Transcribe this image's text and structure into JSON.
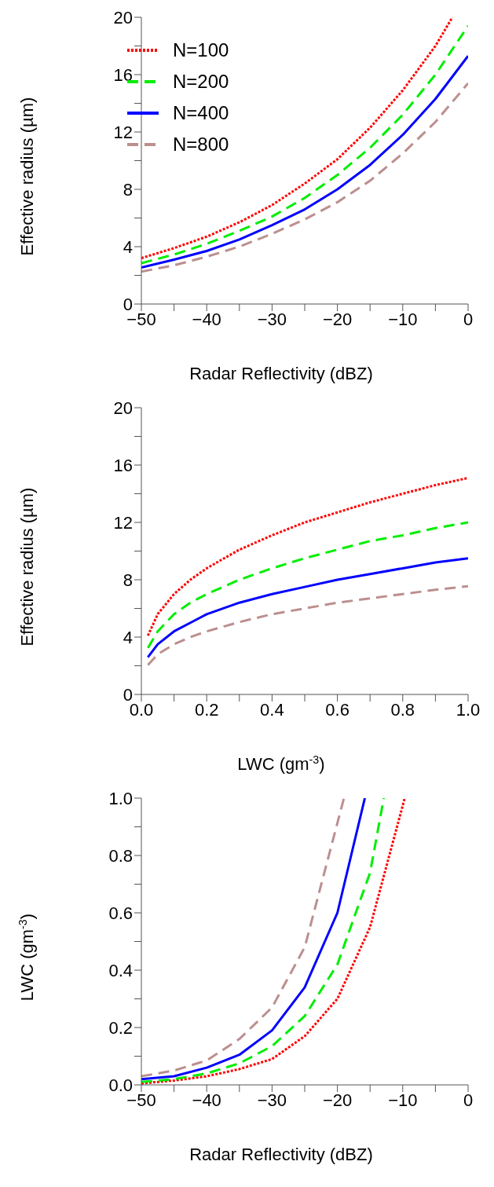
{
  "chart_data": [
    {
      "type": "line",
      "ylabel": "Effective radius (µm)",
      "xlabel": "Radar Reflectivity (dBZ)",
      "xlim": [
        -50,
        0
      ],
      "ylim": [
        0,
        20
      ],
      "xticks": [
        {
          "value": -50,
          "label": "−50"
        },
        {
          "value": -45,
          "label": null
        },
        {
          "value": -40,
          "label": "−40"
        },
        {
          "value": -35,
          "label": null
        },
        {
          "value": -30,
          "label": "−30"
        },
        {
          "value": -25,
          "label": null
        },
        {
          "value": -20,
          "label": "−20"
        },
        {
          "value": -15,
          "label": null
        },
        {
          "value": -10,
          "label": "−10"
        },
        {
          "value": -5,
          "label": null
        },
        0
      ],
      "yticks": [
        0,
        {
          "value": 2,
          "label": null
        },
        4,
        {
          "value": 6,
          "label": null
        },
        8,
        {
          "value": 10,
          "label": null
        },
        12,
        {
          "value": 14,
          "label": null
        },
        16,
        {
          "value": 18,
          "label": null
        },
        20
      ],
      "legend": "top left",
      "grid": false,
      "marker": "none",
      "series": [
        {
          "name": "N=100",
          "color": "#ff0000",
          "line_style": "dotted",
          "x": [
            -50,
            -45,
            -40,
            -35,
            -30,
            -25,
            -20,
            -15,
            -10,
            -5,
            -2.4
          ],
          "values": [
            3.2,
            3.9,
            4.7,
            5.7,
            6.9,
            8.4,
            10.1,
            12.3,
            14.9,
            18.0,
            20
          ]
        },
        {
          "name": "N=200",
          "color": "#00ee00",
          "line_style": "dashed",
          "x": [
            -50,
            -45,
            -40,
            -35,
            -30,
            -25,
            -20,
            -15,
            -10,
            -5,
            0
          ],
          "values": [
            2.85,
            3.45,
            4.2,
            5.1,
            6.1,
            7.4,
            9.0,
            10.9,
            13.2,
            16.0,
            19.4
          ]
        },
        {
          "name": "N=400",
          "color": "#0000ff",
          "line_style": "solid",
          "x": [
            -50,
            -45,
            -40,
            -35,
            -30,
            -25,
            -20,
            -15,
            -10,
            -5,
            0
          ],
          "values": [
            2.55,
            3.1,
            3.7,
            4.5,
            5.5,
            6.6,
            8.0,
            9.7,
            11.8,
            14.3,
            17.3
          ]
        },
        {
          "name": "N=800",
          "color": "#bc8f8f",
          "line_style": "dashed",
          "x": [
            -50,
            -45,
            -40,
            -35,
            -30,
            -25,
            -20,
            -15,
            -10,
            -5,
            0
          ],
          "values": [
            2.26,
            2.7,
            3.3,
            4.0,
            4.9,
            5.9,
            7.1,
            8.6,
            10.5,
            12.7,
            15.4
          ]
        }
      ]
    },
    {
      "type": "line",
      "ylabel": "Effective radius (µm)",
      "xlabel": "LWC (gm$^{-3}$)",
      "xlim": [
        0,
        1
      ],
      "ylim": [
        0,
        20
      ],
      "xticks": [
        {
          "value": 0,
          "label": "0.0"
        },
        {
          "value": 0.1,
          "label": null
        },
        {
          "value": 0.2,
          "label": "0.2"
        },
        {
          "value": 0.3,
          "label": null
        },
        {
          "value": 0.4,
          "label": "0.4"
        },
        {
          "value": 0.5,
          "label": null
        },
        {
          "value": 0.6,
          "label": "0.6"
        },
        {
          "value": 0.7,
          "label": null
        },
        {
          "value": 0.8,
          "label": "0.8"
        },
        {
          "value": 0.9,
          "label": null
        },
        {
          "value": 1,
          "label": "1.0"
        }
      ],
      "yticks": [
        0,
        {
          "value": 2,
          "label": null
        },
        4,
        {
          "value": 6,
          "label": null
        },
        8,
        {
          "value": 10,
          "label": null
        },
        12,
        {
          "value": 14,
          "label": null
        },
        16,
        {
          "value": 18,
          "label": null
        },
        20
      ],
      "grid": false,
      "marker": "none",
      "series": [
        {
          "color": "#ff0000",
          "line_style": "dotted",
          "x": [
            0.02,
            0.05,
            0.1,
            0.15,
            0.2,
            0.3,
            0.4,
            0.5,
            0.6,
            0.7,
            0.8,
            0.9,
            1.0
          ],
          "values": [
            4.1,
            5.6,
            7.0,
            8.0,
            8.8,
            10.1,
            11.1,
            12.0,
            12.7,
            13.4,
            14.0,
            14.6,
            15.1
          ]
        },
        {
          "color": "#00ee00",
          "line_style": "dashed",
          "x": [
            0.02,
            0.05,
            0.1,
            0.15,
            0.2,
            0.3,
            0.4,
            0.5,
            0.6,
            0.7,
            0.8,
            0.9,
            1.0
          ],
          "values": [
            3.25,
            4.4,
            5.6,
            6.4,
            7.0,
            8.0,
            8.8,
            9.5,
            10.1,
            10.7,
            11.1,
            11.6,
            12.0
          ]
        },
        {
          "color": "#0000ff",
          "line_style": "solid",
          "x": [
            0.02,
            0.05,
            0.1,
            0.15,
            0.2,
            0.3,
            0.4,
            0.5,
            0.6,
            0.7,
            0.8,
            0.9,
            1.0
          ],
          "values": [
            2.6,
            3.5,
            4.4,
            5.0,
            5.6,
            6.4,
            7.0,
            7.5,
            8.0,
            8.4,
            8.8,
            9.2,
            9.5
          ]
        },
        {
          "color": "#bc8f8f",
          "line_style": "dashed",
          "x": [
            0.02,
            0.05,
            0.1,
            0.15,
            0.2,
            0.3,
            0.4,
            0.5,
            0.6,
            0.7,
            0.8,
            0.9,
            1.0
          ],
          "values": [
            2.05,
            2.8,
            3.5,
            4.0,
            4.4,
            5.05,
            5.6,
            6.0,
            6.4,
            6.7,
            7.0,
            7.3,
            7.55
          ]
        }
      ]
    },
    {
      "type": "line",
      "ylabel": "LWC (gm$^{-3}$)",
      "xlabel": "Radar Reflectivity (dBZ)",
      "xlim": [
        -50,
        0
      ],
      "ylim": [
        0,
        1
      ],
      "xticks": [
        {
          "value": -50,
          "label": "−50"
        },
        {
          "value": -45,
          "label": null
        },
        {
          "value": -40,
          "label": "−40"
        },
        {
          "value": -35,
          "label": null
        },
        {
          "value": -30,
          "label": "−30"
        },
        {
          "value": -25,
          "label": null
        },
        {
          "value": -20,
          "label": "−20"
        },
        {
          "value": -15,
          "label": null
        },
        {
          "value": -10,
          "label": "−10"
        },
        {
          "value": -5,
          "label": null
        },
        0
      ],
      "yticks": [
        {
          "value": 0,
          "label": "0.0"
        },
        {
          "value": 0.1,
          "label": null
        },
        {
          "value": 0.2,
          "label": "0.2"
        },
        {
          "value": 0.3,
          "label": null
        },
        {
          "value": 0.4,
          "label": "0.4"
        },
        {
          "value": 0.5,
          "label": null
        },
        {
          "value": 0.6,
          "label": "0.6"
        },
        {
          "value": 0.7,
          "label": null
        },
        {
          "value": 0.8,
          "label": "0.8"
        },
        {
          "value": 0.9,
          "label": null
        },
        {
          "value": 1,
          "label": "1.0"
        }
      ],
      "grid": false,
      "marker": "none",
      "series": [
        {
          "color": "#ff0000",
          "line_style": "dotted",
          "x": [
            -50,
            -45,
            -40,
            -35,
            -30,
            -25,
            -20,
            -15,
            -9.7
          ],
          "values": [
            0.005,
            0.015,
            0.03,
            0.055,
            0.09,
            0.17,
            0.3,
            0.55,
            1.0
          ]
        },
        {
          "color": "#00ee00",
          "line_style": "dashed",
          "x": [
            -50,
            -45,
            -40,
            -35,
            -30,
            -25,
            -20,
            -15,
            -12.9
          ],
          "values": [
            0.01,
            0.02,
            0.04,
            0.075,
            0.135,
            0.24,
            0.42,
            0.74,
            1.0
          ]
        },
        {
          "color": "#0000ff",
          "line_style": "solid",
          "x": [
            -50,
            -45,
            -40,
            -35,
            -30,
            -25,
            -20,
            -15.8
          ],
          "values": [
            0.02,
            0.03,
            0.06,
            0.105,
            0.19,
            0.34,
            0.6,
            1.0
          ]
        },
        {
          "color": "#bc8f8f",
          "line_style": "dashed",
          "x": [
            -50,
            -45,
            -40,
            -35,
            -30,
            -25,
            -19.0
          ],
          "values": [
            0.03,
            0.05,
            0.085,
            0.16,
            0.27,
            0.48,
            1.0
          ]
        }
      ]
    }
  ]
}
